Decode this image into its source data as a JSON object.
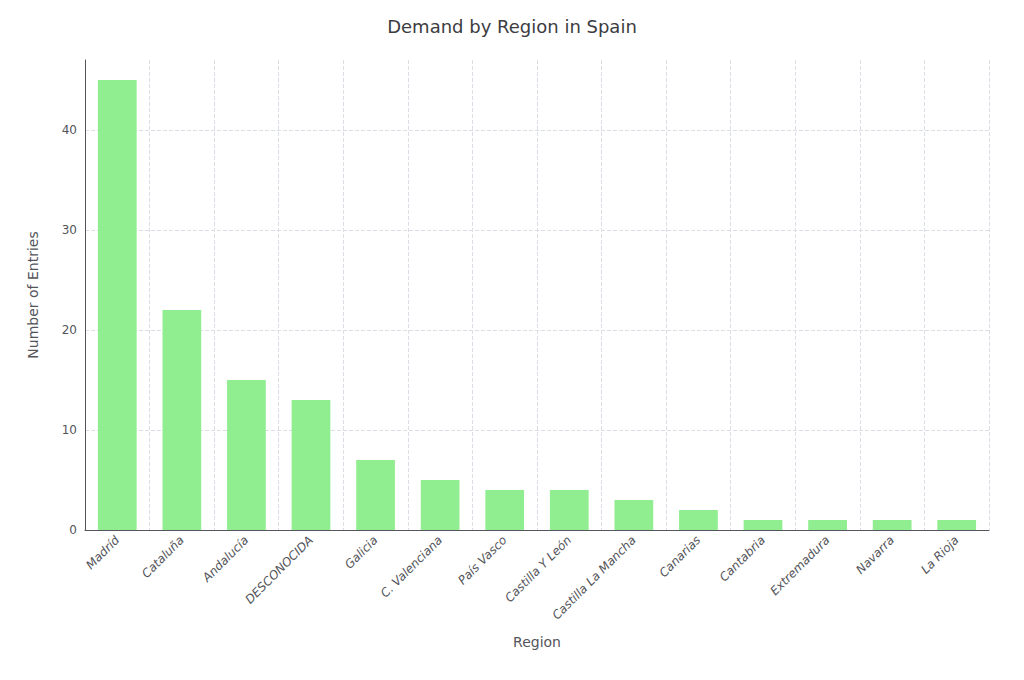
{
  "chart_data": {
    "type": "bar",
    "title": "Demand by Region in Spain",
    "xlabel": "Region",
    "ylabel": "Number of Entries",
    "categories": [
      "Madríd",
      "Cataluña",
      "Andalucía",
      "DESCONOCIDA",
      "Galicia",
      "C. Valenciana",
      "País Vasco",
      "Castilla Y León",
      "Castilla La Mancha",
      "Canarias",
      "Cantabria",
      "Extremadura",
      "Navarra",
      "La Rioja"
    ],
    "values": [
      45,
      22,
      15,
      13,
      7,
      5,
      4,
      4,
      3,
      2,
      1,
      1,
      1,
      1
    ],
    "color": "#90EE90",
    "ylim": [
      0,
      47
    ],
    "yticks": [
      0,
      10,
      20,
      30,
      40
    ],
    "grid": true
  }
}
